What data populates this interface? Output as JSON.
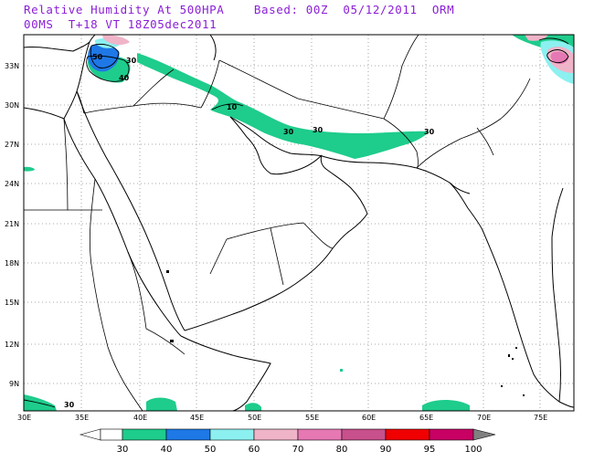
{
  "header": {
    "line1": "Relative Humidity At 500HPA    Based: 00Z  05/12/2011  ORM",
    "line2": "00MS  T+18 VT 18Z05dec2011"
  },
  "axes": {
    "lon_labels": [
      "30E",
      "35E",
      "40E",
      "45E",
      "50E",
      "55E",
      "60E",
      "65E",
      "70E",
      "75E"
    ],
    "lat_labels": [
      "33N",
      "30N",
      "27N",
      "24N",
      "21N",
      "18N",
      "15N",
      "12N",
      "9N"
    ]
  },
  "contour_labels": [
    "50",
    "30",
    "40",
    "10",
    "30",
    "30",
    "30",
    "30"
  ],
  "legend": {
    "labels": [
      "30",
      "40",
      "50",
      "60",
      "70",
      "80",
      "90",
      "95",
      "100"
    ],
    "colors": [
      "#1ecc8c",
      "#1e78e6",
      "#8cf0f0",
      "#f0b4c8",
      "#e678b4",
      "#c8508c",
      "#f00000",
      "#c80064",
      "#808080"
    ]
  },
  "colors": {
    "title": "#8a1fd6",
    "humid_band": "#1ecc8c",
    "border": "#000000",
    "grid": "#909090"
  }
}
